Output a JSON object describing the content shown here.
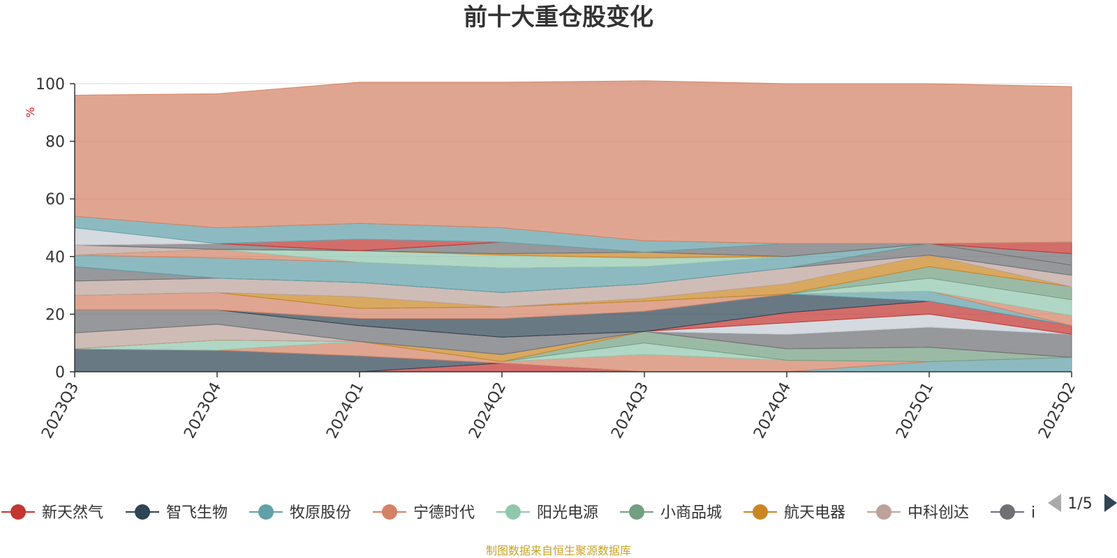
{
  "chart_data": {
    "type": "area",
    "title": "前十大重仓股变化",
    "ylabel": "%",
    "ylim": [
      0,
      100
    ],
    "yticks": [
      "0",
      "20",
      "40",
      "60",
      "80",
      "100"
    ],
    "categories": [
      "2023Q3",
      "2023Q4",
      "2024Q1",
      "2024Q2",
      "2024Q3",
      "2024Q4",
      "2025Q1",
      "2025Q2"
    ],
    "stacked": true,
    "grid": true,
    "series": [
      {
        "name": "新天然气",
        "color": "#c23531",
        "values": [
          0,
          0,
          0,
          3,
          0,
          0,
          0,
          0
        ]
      },
      {
        "name": "智飞生物",
        "color": "#2f4554",
        "values": [
          8,
          7.5,
          5.5,
          0,
          0,
          0,
          0,
          0
        ]
      },
      {
        "name": "牧原股份",
        "color": "#61a0a8",
        "values": [
          0,
          0,
          0,
          0,
          0,
          0,
          3.5,
          5
        ]
      },
      {
        "name": "宁德时代",
        "color": "#d48265",
        "values": [
          0,
          0,
          5,
          0.5,
          6,
          4,
          0,
          0
        ]
      },
      {
        "name": "阳光电源",
        "color": "#91c7ae",
        "values": [
          0,
          3.5,
          0,
          0,
          4,
          0,
          0,
          0
        ]
      },
      {
        "name": "小商品城",
        "color": "#749f83",
        "values": [
          0,
          0,
          0,
          0,
          4,
          4,
          5,
          0
        ]
      },
      {
        "name": "航天电器",
        "color": "#ca8622",
        "values": [
          0,
          0,
          0,
          2.5,
          0,
          0,
          0,
          0
        ]
      },
      {
        "name": "中科创达",
        "color": "#bda29a",
        "values": [
          5.5,
          5.5,
          0,
          0,
          0,
          0,
          0,
          0
        ]
      },
      {
        "name": "",
        "color": "#6e7074",
        "values": [
          8,
          5,
          5.5,
          6,
          0,
          5,
          7,
          8
        ]
      },
      {
        "name": "",
        "color": "#c4ccd3",
        "values": [
          0,
          0,
          0,
          0,
          0,
          4,
          4.5,
          0
        ]
      },
      {
        "name": "",
        "color": "#c23531",
        "values": [
          0,
          0,
          0,
          0,
          0,
          3.5,
          4.5,
          3
        ]
      },
      {
        "name": "",
        "color": "#2f4554",
        "values": [
          0,
          0,
          2.5,
          6.5,
          7,
          6.5,
          0,
          0
        ]
      },
      {
        "name": "",
        "color": "#61a0a8",
        "values": [
          0,
          0,
          0,
          0,
          0,
          0,
          3.5,
          0
        ]
      },
      {
        "name": "",
        "color": "#d48265",
        "values": [
          5,
          6,
          3.5,
          4,
          3.5,
          0,
          0,
          3.5
        ]
      },
      {
        "name": "",
        "color": "#91c7ae",
        "values": [
          0,
          0,
          0,
          0,
          0,
          0,
          4.5,
          5.5
        ]
      },
      {
        "name": "",
        "color": "#749f83",
        "values": [
          0,
          0,
          0,
          0,
          0,
          0,
          4,
          4.5
        ]
      },
      {
        "name": "",
        "color": "#ca8622",
        "values": [
          0,
          0,
          4,
          0,
          1,
          3.5,
          4,
          0
        ]
      },
      {
        "name": "",
        "color": "#bda29a",
        "values": [
          5,
          5,
          5,
          5,
          5,
          5.5,
          0,
          4
        ]
      },
      {
        "name": "",
        "color": "#6e7074",
        "values": [
          5,
          0,
          0,
          0,
          0,
          0,
          4,
          3.5
        ]
      },
      {
        "name": "",
        "color": "#61a0a8",
        "values": [
          4,
          7,
          7,
          8.5,
          6,
          4,
          0,
          0
        ]
      },
      {
        "name": "",
        "color": "#d48265",
        "values": [
          0,
          3,
          0,
          0,
          0,
          0,
          0,
          0
        ]
      },
      {
        "name": "",
        "color": "#91c7ae",
        "values": [
          0,
          0,
          4,
          4.5,
          3,
          0,
          0,
          0
        ]
      },
      {
        "name": "",
        "color": "#ca8622",
        "values": [
          0,
          0,
          0,
          0.5,
          2,
          0,
          0,
          0
        ]
      },
      {
        "name": "",
        "color": "#bda29a",
        "values": [
          3.5,
          0,
          0,
          0,
          0,
          0,
          0,
          0
        ]
      },
      {
        "name": "",
        "color": "#6e7074",
        "values": [
          0,
          2,
          0,
          4,
          0,
          4.5,
          0,
          4
        ]
      },
      {
        "name": "",
        "color": "#c23531",
        "values": [
          0,
          0,
          4,
          0,
          0,
          0,
          0,
          4
        ]
      },
      {
        "name": "",
        "color": "#c4ccd3",
        "values": [
          6,
          0,
          0,
          0,
          0,
          0,
          0,
          0
        ]
      },
      {
        "name": "",
        "color": "#61a0a8",
        "values": [
          4,
          5.5,
          5.5,
          5,
          4,
          0,
          0,
          0
        ]
      },
      {
        "name": "",
        "color": "#d48265",
        "values": [
          42,
          46.5,
          49,
          50.5,
          55.5,
          55.5,
          55.5,
          54
        ]
      }
    ]
  },
  "legend": {
    "items": [
      {
        "label": "新天然气",
        "color": "#c23531"
      },
      {
        "label": "智飞生物",
        "color": "#2f4554"
      },
      {
        "label": "牧原股份",
        "color": "#61a0a8"
      },
      {
        "label": "宁德时代",
        "color": "#d48265"
      },
      {
        "label": "阳光电源",
        "color": "#91c7ae"
      },
      {
        "label": "小商品城",
        "color": "#749f83"
      },
      {
        "label": "航天电器",
        "color": "#ca8622"
      },
      {
        "label": "中科创达",
        "color": "#bda29a"
      },
      {
        "label": "i",
        "color": "#6e7074"
      }
    ],
    "page": "1/5",
    "prev_icon": "triangle-left-icon",
    "next_icon": "triangle-right-icon"
  },
  "source_note": "制图数据来自恒生聚源数据库",
  "colors": {
    "unit": "#e01f1f",
    "source": "#c9a227",
    "axis": "#333333",
    "grid": "rgba(120,120,120,0.25)",
    "page_prev_inactive": "#aaaaaa",
    "page_next_active": "#2f4554"
  }
}
